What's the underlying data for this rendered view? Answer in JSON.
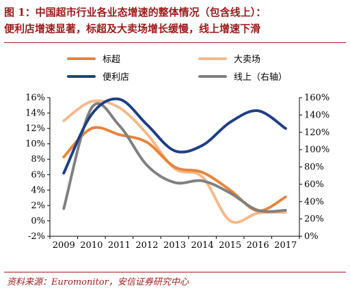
{
  "figure": {
    "title_line1": "图 1：中国超市行业各业态增速的整体情况（包含线上）：",
    "title_line2": "便利店增速显著，标超及大卖场增长缓慢，线上增速下滑",
    "source": "资料来源：Euromonitor，安信证券研究中心"
  },
  "colors": {
    "title": "#9a1b1b",
    "标超": "#e8833a",
    "大卖场": "#f5b98a",
    "便利店": "#1f3f86",
    "线上": "#808080"
  },
  "chart_data": {
    "type": "line",
    "x": [
      "2009",
      "2010",
      "2011",
      "2012",
      "2013",
      "2014",
      "2015",
      "2016",
      "2017"
    ],
    "left_axis": {
      "ylim": [
        -2,
        16
      ],
      "ticks": [
        "-2%",
        "0%",
        "2%",
        "4%",
        "6%",
        "8%",
        "10%",
        "12%",
        "14%",
        "16%"
      ]
    },
    "right_axis": {
      "ylim": [
        0,
        160
      ],
      "ticks": [
        "0%",
        "20%",
        "40%",
        "60%",
        "80%",
        "100%",
        "120%",
        "140%",
        "160%"
      ]
    },
    "series": [
      {
        "name": "标超",
        "axis": "left",
        "values": [
          8.3,
          12.0,
          11.2,
          10.2,
          7.0,
          6.3,
          4.0,
          1.3,
          3.1
        ]
      },
      {
        "name": "大卖场",
        "axis": "left",
        "values": [
          13.0,
          15.5,
          14.7,
          11.3,
          6.8,
          5.7,
          0.0,
          1.0,
          1.1
        ]
      },
      {
        "name": "便利店",
        "axis": "left",
        "values": [
          6.2,
          13.8,
          15.8,
          12.5,
          9.1,
          9.8,
          12.8,
          14.3,
          12.0
        ]
      },
      {
        "name": "线上（右轴）",
        "axis": "right",
        "values": [
          32,
          148,
          128,
          82,
          62,
          64,
          50,
          30,
          30
        ]
      }
    ],
    "legend": "top",
    "grid": false
  }
}
